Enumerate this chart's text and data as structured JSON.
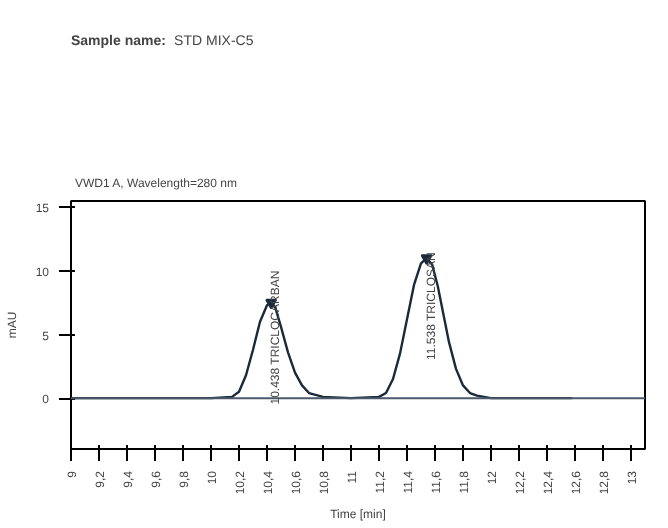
{
  "chart_data": {
    "type": "line",
    "title": "Sample name:",
    "subtitle": "STD MIX-C5",
    "xlabel": "Time [min]",
    "ylabel": "mAU",
    "x": [
      9.0,
      9.5,
      10.0,
      10.15,
      10.2,
      10.25,
      10.3,
      10.35,
      10.4,
      10.43,
      10.46,
      10.5,
      10.55,
      10.6,
      10.65,
      10.7,
      10.8,
      11.0,
      11.2,
      11.25,
      11.3,
      11.35,
      11.4,
      11.45,
      11.5,
      11.54,
      11.58,
      11.62,
      11.66,
      11.7,
      11.75,
      11.8,
      11.85,
      11.9,
      12.0,
      12.3,
      12.58
    ],
    "series": [
      {
        "color": "#1a2a3a",
        "values": [
          0,
          0,
          0,
          0.1,
          0.5,
          1.8,
          3.8,
          6.0,
          7.3,
          7.5,
          7.1,
          5.6,
          3.6,
          2.0,
          1.0,
          0.4,
          0.1,
          0,
          0.1,
          0.4,
          1.5,
          3.5,
          6.2,
          8.9,
          10.6,
          11.0,
          10.5,
          8.8,
          6.6,
          4.4,
          2.3,
          1.0,
          0.4,
          0.2,
          0,
          0,
          0
        ]
      }
    ],
    "xlim": [
      9.0,
      13.1
    ],
    "ylim": [
      -4,
      15.5
    ],
    "xticks": [
      {
        "value": 9,
        "label": "9"
      },
      {
        "value": 9.2,
        "label": "9,2"
      },
      {
        "value": 9.4,
        "label": "9,4"
      },
      {
        "value": 9.6,
        "label": "9,6"
      },
      {
        "value": 9.8,
        "label": "9,8"
      },
      {
        "value": 10,
        "label": "10"
      },
      {
        "value": 10.2,
        "label": "10,2"
      },
      {
        "value": 10.4,
        "label": "10,4"
      },
      {
        "value": 10.6,
        "label": "10,6"
      },
      {
        "value": 10.8,
        "label": "10,8"
      },
      {
        "value": 11,
        "label": "11"
      },
      {
        "value": 11.2,
        "label": "11,2"
      },
      {
        "value": 11.4,
        "label": "11,4"
      },
      {
        "value": 11.6,
        "label": "11,6"
      },
      {
        "value": 11.8,
        "label": "11,8"
      },
      {
        "value": 12,
        "label": "12"
      },
      {
        "value": 12.2,
        "label": "12,2"
      },
      {
        "value": 12.4,
        "label": "12,4"
      },
      {
        "value": 12.6,
        "label": "12,6"
      },
      {
        "value": 12.8,
        "label": "12,8"
      },
      {
        "value": 13,
        "label": "13"
      }
    ],
    "yticks": [
      0,
      5,
      10,
      15
    ],
    "ref_lines": [
      {
        "axis": "y",
        "value": 0,
        "color": "#4a5a6a"
      }
    ],
    "annotations": [
      "VWD1 A, Wavelength=280 nm",
      {
        "text": "10.438 TRICLOCARBAN",
        "x": 10.43,
        "y": 7.5
      },
      {
        "text": "11.538 TRICLOSAN",
        "x": 11.54,
        "y": 11.0
      }
    ],
    "grid": false,
    "marker": "none",
    "line_style": "solid"
  }
}
